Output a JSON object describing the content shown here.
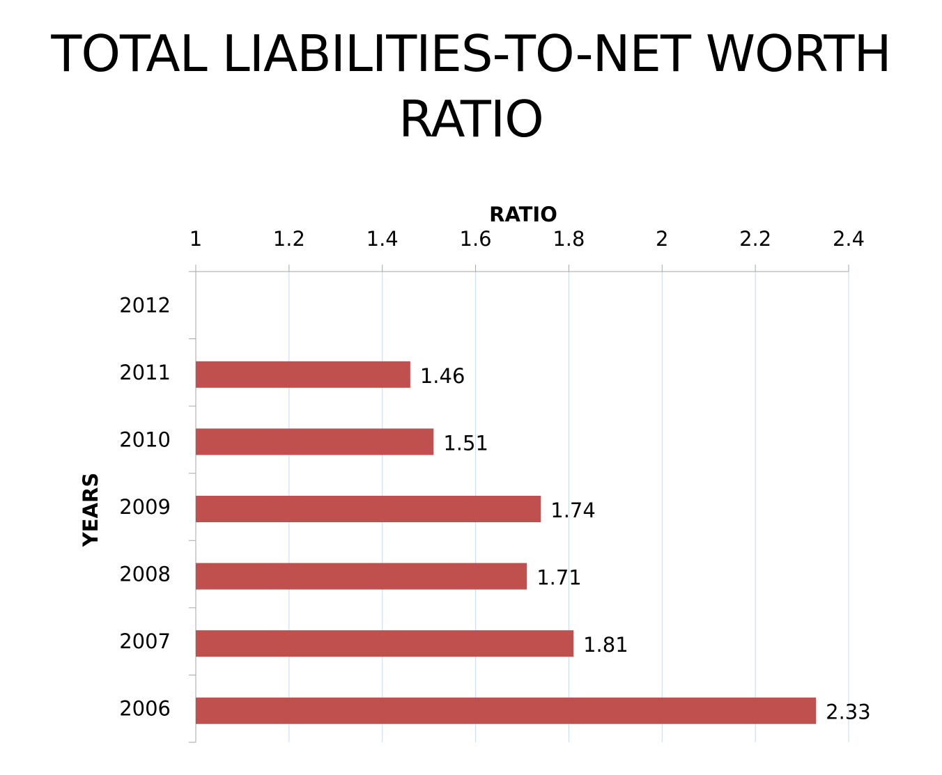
{
  "slide": {
    "title_line1": "TOTAL LIABILITIES-TO-NET WORTH",
    "title_line2": "RATIO"
  },
  "chart_data": {
    "type": "bar",
    "orientation": "horizontal",
    "categories": [
      "2012",
      "2011",
      "2010",
      "2009",
      "2008",
      "2007",
      "2006"
    ],
    "values": [
      null,
      1.46,
      1.51,
      1.74,
      1.71,
      1.81,
      2.33
    ],
    "data_labels": [
      "",
      "1.46",
      "1.51",
      "1.74",
      "1.71",
      "1.81",
      "2.33"
    ],
    "xlabel": "RATIO",
    "ylabel": "YEARS",
    "xlim": [
      1,
      2.4
    ],
    "x_ticks": [
      1,
      1.2,
      1.4,
      1.6,
      1.8,
      2,
      2.2,
      2.4
    ],
    "x_tick_labels": [
      "1",
      "1.2",
      "1.4",
      "1.6",
      "1.8",
      "2",
      "2.2",
      "2.4"
    ],
    "x_axis_position": "top",
    "grid": true,
    "legend": "none",
    "bar_color": "#c0504d",
    "grid_color": "#c6d9f1",
    "axis_color": "#a6a6a6"
  }
}
